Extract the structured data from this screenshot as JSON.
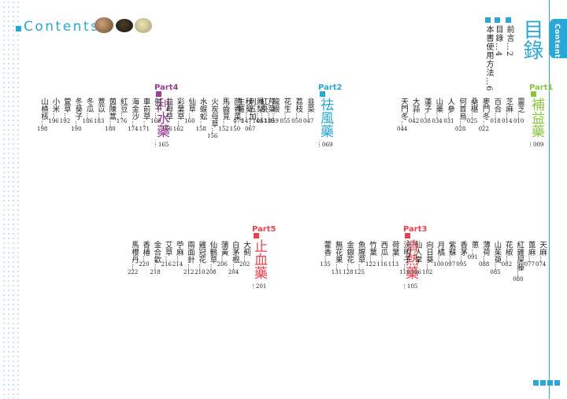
{
  "header": {
    "title": "Contents"
  },
  "side_tab": {
    "label": "Contents"
  },
  "main_title": "目錄",
  "colors": {
    "blue": "#29a7d6",
    "purple": "#9b3e93",
    "green": "#8bc53f",
    "red": "#e8424b"
  },
  "front_matter": [
    {
      "title": "前言",
      "page": "2"
    },
    {
      "title": "目錄",
      "page": "4"
    },
    {
      "title": "本書使用方法",
      "page": "6"
    }
  ],
  "parts": [
    {
      "label": "Part1",
      "name": "補益藥",
      "page": "009",
      "color": "#8bc53f"
    },
    {
      "label": "Part2",
      "name": "祛風藥",
      "page": "069",
      "color": "#29a7d6"
    },
    {
      "label": "Part3",
      "name": "清熱藥",
      "page": "105",
      "color": "#e8424b"
    },
    {
      "label": "Part4",
      "name": "利水藥",
      "page": "165",
      "color": "#9b3e93"
    },
    {
      "label": "Part5",
      "name": "止血藥",
      "page": "201",
      "color": "#e8424b"
    }
  ],
  "part1_entries": [
    {
      "name": "靈芝",
      "page": "010"
    },
    {
      "name": "芝麻",
      "page": "014"
    },
    {
      "name": "百合",
      "page": "018"
    },
    {
      "name": "麥門冬",
      "page": "022"
    },
    {
      "name": "桑椹",
      "page": "025"
    },
    {
      "name": "何首烏",
      "page": "028"
    },
    {
      "name": "人參",
      "page": "031"
    },
    {
      "name": "山藥",
      "page": "034"
    },
    {
      "name": "蓮子",
      "page": "038"
    },
    {
      "name": "大蒜",
      "page": "042"
    },
    {
      "name": "天門冬",
      "page": "044"
    }
  ],
  "part2_entries": [
    {
      "name": "韭菜",
      "page": "047"
    },
    {
      "name": "荔枝",
      "page": "050"
    },
    {
      "name": "花生",
      "page": "055"
    },
    {
      "name": "龍眼",
      "page": "059"
    },
    {
      "name": "紅棗",
      "page": "063"
    },
    {
      "name": "刺五加",
      "page": "067"
    },
    {
      "name": "生薑",
      "page": "070"
    }
  ],
  "part4_entries": [
    {
      "name": "芹菜",
      "page": "139"
    },
    {
      "name": "鳳梨",
      "page": "143"
    },
    {
      "name": "秋葵",
      "page": "147"
    },
    {
      "name": "茴香菜",
      "page": "150"
    },
    {
      "name": "馬齒莧",
      "page": "152"
    },
    {
      "name": "火炭母草",
      "page": "156"
    },
    {
      "name": "水蜈蚣",
      "page": "158"
    },
    {
      "name": "仙草",
      "page": "160"
    },
    {
      "name": "彩葉草",
      "page": "162"
    },
    {
      "name": "益母草",
      "page": "166"
    },
    {
      "name": "射干",
      "page": "169"
    },
    {
      "name": "車前草",
      "page": "171"
    },
    {
      "name": "海金沙",
      "page": "174"
    },
    {
      "name": "紅豆",
      "page": "176"
    },
    {
      "name": "茵陳蒿",
      "page": "180"
    },
    {
      "name": "薏苡",
      "page": "183"
    },
    {
      "name": "冬瓜",
      "page": "186"
    },
    {
      "name": "冬葵子",
      "page": "190"
    },
    {
      "name": "萱草",
      "page": "192"
    },
    {
      "name": "小米",
      "page": "196"
    },
    {
      "name": "山楂核",
      "page": "198"
    }
  ],
  "part3_entries": [
    {
      "name": "天麻",
      "page": "074"
    },
    {
      "name": "蓖麻",
      "page": "077"
    },
    {
      "name": "紅雞屎藤",
      "page": "080"
    },
    {
      "name": "花椒",
      "page": "082"
    },
    {
      "name": "山茱萸",
      "page": "085"
    },
    {
      "name": "薄荷",
      "page": "088"
    },
    {
      "name": "蔥",
      "page": "091"
    },
    {
      "name": "香茅",
      "page": "095"
    },
    {
      "name": "紫蘇",
      "page": "097"
    },
    {
      "name": "月橘",
      "page": "100"
    },
    {
      "name": "向日葵",
      "page": "102"
    },
    {
      "name": "仙人掌",
      "page": "106"
    },
    {
      "name": "決明子",
      "page": "110"
    },
    {
      "name": "荷葉",
      "page": "113"
    },
    {
      "name": "西瓜",
      "page": "116"
    },
    {
      "name": "竹葉",
      "page": "122"
    },
    {
      "name": "魚腥草",
      "page": "125"
    },
    {
      "name": "金銀花",
      "page": "128"
    },
    {
      "name": "無花果",
      "page": "131"
    },
    {
      "name": "藿香",
      "page": "135"
    }
  ],
  "part5_entries": [
    {
      "name": "大薊",
      "page": "202"
    },
    {
      "name": "白茅根",
      "page": "204"
    },
    {
      "name": "蒲黃",
      "page": "206"
    },
    {
      "name": "仙鶴草",
      "page": "208"
    },
    {
      "name": "雞冠花",
      "page": "210"
    },
    {
      "name": "兩面針",
      "page": "212"
    },
    {
      "name": "苧麻",
      "page": "214"
    },
    {
      "name": "艾草",
      "page": "216"
    },
    {
      "name": "金合歡",
      "page": "218"
    },
    {
      "name": "香椿",
      "page": "220"
    },
    {
      "name": "馬櫻丹",
      "page": "222"
    }
  ]
}
